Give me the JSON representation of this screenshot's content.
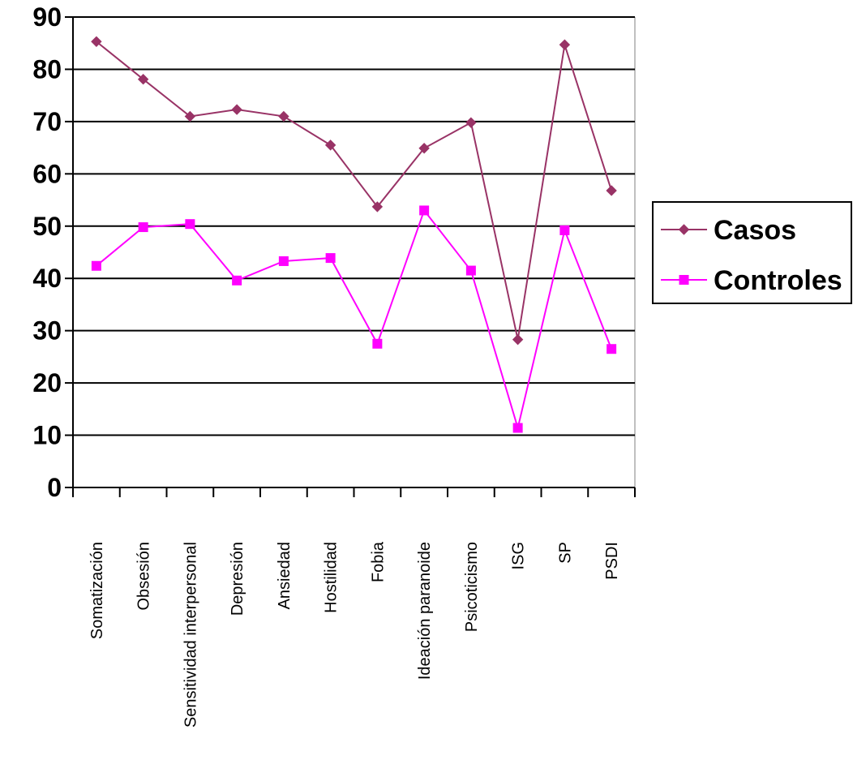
{
  "chart_data": {
    "type": "line",
    "categories": [
      "Somatización",
      "Obsesión",
      "Sensitividad interpersonal",
      "Depresión",
      "Ansiedad",
      "Hostilidad",
      "Fobia",
      "Ideación paranoide",
      "Psicoticismo",
      "ISG",
      "SP",
      "PSDI"
    ],
    "series": [
      {
        "name": "Casos",
        "color": "#993366",
        "marker": "diamond",
        "values": [
          85.3,
          78.1,
          71.0,
          72.3,
          71.0,
          65.5,
          53.7,
          64.9,
          69.8,
          28.3,
          84.7,
          56.8
        ]
      },
      {
        "name": "Controles",
        "color": "#ff00ff",
        "marker": "square",
        "values": [
          42.4,
          49.8,
          50.4,
          39.6,
          43.3,
          43.9,
          27.5,
          53.0,
          41.5,
          11.4,
          49.2,
          26.5
        ]
      }
    ],
    "ylim": [
      0,
      90
    ],
    "yticks": [
      0,
      10,
      20,
      30,
      40,
      50,
      60,
      70,
      80,
      90
    ],
    "grid": true,
    "legend_position": "right"
  }
}
